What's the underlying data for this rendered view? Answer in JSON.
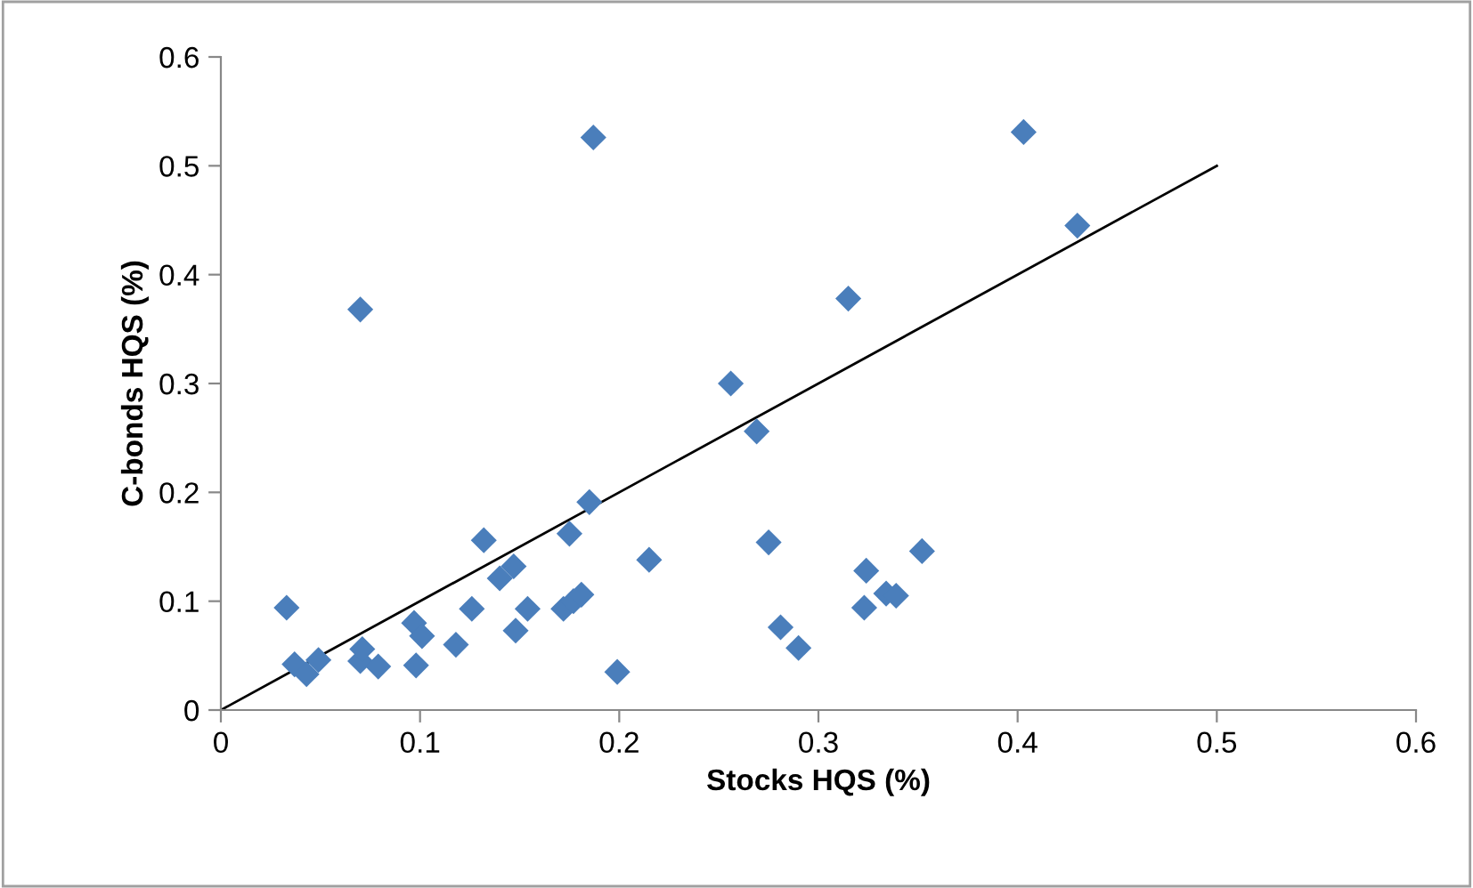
{
  "chart_data": {
    "type": "scatter",
    "xlabel": "Stocks HQS (%)",
    "ylabel": "C-bonds HQS (%)",
    "xlim": [
      0,
      0.6
    ],
    "xticks": [
      {
        "value": 0,
        "label": "0"
      },
      0.1,
      0.2,
      0.3,
      0.4,
      0.5,
      0.6
    ],
    "ylim": [
      0,
      0.6
    ],
    "yticks": [
      {
        "value": 0,
        "label": "0"
      },
      0.1,
      0.2,
      0.3,
      0.4,
      0.5,
      0.6
    ],
    "grid": false,
    "legend": false,
    "marker": "diamond",
    "series": [
      {
        "color": "#4a7ebb",
        "x": [
          0.033,
          0.037,
          0.043,
          0.049,
          0.07,
          0.071,
          0.079,
          0.097,
          0.098,
          0.101,
          0.118,
          0.126,
          0.132,
          0.14,
          0.147,
          0.148,
          0.154,
          0.172,
          0.175,
          0.177,
          0.181,
          0.185,
          0.199,
          0.215,
          0.256,
          0.269,
          0.275,
          0.281,
          0.29,
          0.323,
          0.324,
          0.334,
          0.339,
          0.352,
          0.07,
          0.187,
          0.315,
          0.403,
          0.43
        ],
        "values": [
          0.094,
          0.042,
          0.033,
          0.046,
          0.045,
          0.056,
          0.04,
          0.08,
          0.041,
          0.068,
          0.06,
          0.093,
          0.156,
          0.121,
          0.132,
          0.073,
          0.093,
          0.093,
          0.162,
          0.1,
          0.106,
          0.191,
          0.035,
          0.138,
          0.3,
          0.256,
          0.154,
          0.076,
          0.057,
          0.094,
          0.128,
          0.107,
          0.105,
          0.146,
          0.368,
          0.526,
          0.378,
          0.531,
          0.445
        ]
      },
      {
        "type": "line",
        "marker": "none",
        "color": "#000000",
        "x": [
          0,
          0.5
        ],
        "values": [
          0,
          0.5
        ]
      }
    ]
  }
}
